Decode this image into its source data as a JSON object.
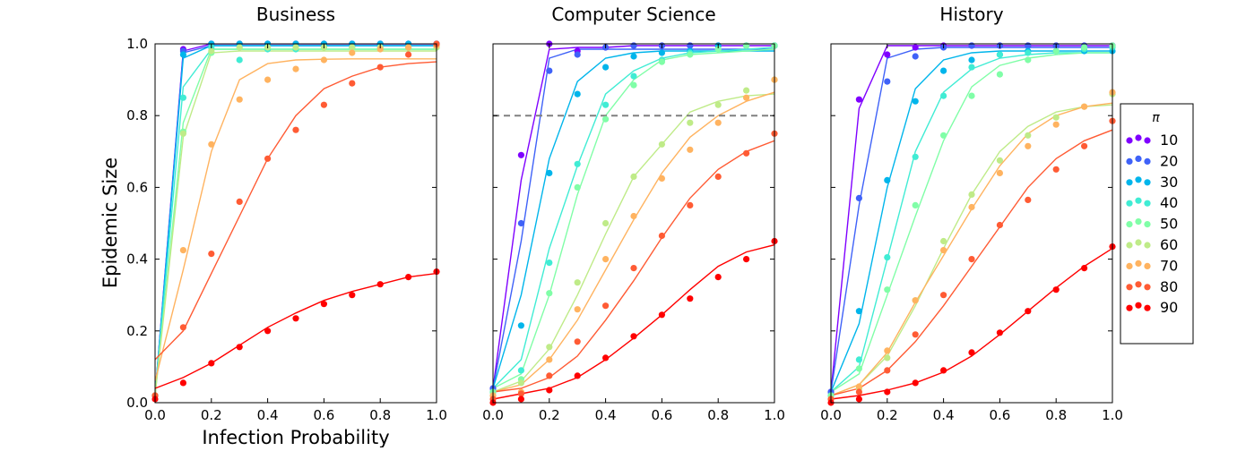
{
  "figure": {
    "ylabel": "Epidemic Size",
    "xlabel": "Infection Probability"
  },
  "legend": {
    "title": "π",
    "placement": "right",
    "entries": [
      "10",
      "20",
      "30",
      "40",
      "50",
      "60",
      "70",
      "80",
      "90"
    ]
  },
  "reference_line": {
    "panel": 2,
    "y": 0.8,
    "color": "#808080",
    "style": "dashed"
  },
  "chart_data": [
    {
      "type": "scatter",
      "title": "Business",
      "xlabel": "Infection Probability",
      "ylabel": "Epidemic Size",
      "xlim": [
        0,
        1
      ],
      "ylim": [
        0,
        1
      ],
      "xticks": [
        "0.0",
        "0.2",
        "0.4",
        "0.6",
        "0.8",
        "1.0"
      ],
      "yticks": [
        "0.0",
        "0.2",
        "0.4",
        "0.6",
        "0.8",
        "1.0"
      ],
      "x": [
        0.0,
        0.1,
        0.2,
        0.3,
        0.4,
        0.5,
        0.6,
        0.7,
        0.8,
        0.9,
        1.0
      ],
      "series": [
        {
          "name": "10",
          "color": "#7f00ff",
          "points": [
            0.02,
            0.985,
            1,
            1,
            1,
            1,
            1,
            1,
            1,
            1,
            1
          ],
          "line": [
            0.02,
            0.98,
            1,
            1,
            1,
            1,
            1,
            1,
            1,
            1,
            1
          ]
        },
        {
          "name": "20",
          "color": "#3f62f8",
          "points": [
            0.02,
            0.98,
            1,
            1,
            1,
            1,
            1,
            1,
            1,
            1,
            1
          ],
          "line": [
            0.02,
            0.975,
            0.995,
            0.995,
            0.995,
            0.995,
            0.995,
            0.995,
            0.995,
            0.995,
            0.995
          ]
        },
        {
          "name": "30",
          "color": "#00b5eb",
          "points": [
            0.02,
            0.97,
            1,
            1,
            1,
            1,
            1,
            1,
            1,
            1,
            1
          ],
          "line": [
            0.02,
            0.96,
            0.995,
            0.995,
            0.995,
            0.995,
            0.995,
            0.995,
            0.995,
            0.995,
            0.995
          ]
        },
        {
          "name": "40",
          "color": "#40ecd4",
          "points": [
            0.02,
            0.85,
            0.99,
            0.955,
            0.985,
            0.985,
            0.99,
            0.99,
            0.99,
            0.99,
            0.995
          ],
          "line": [
            0.02,
            0.88,
            0.985,
            0.985,
            0.985,
            0.985,
            0.985,
            0.985,
            0.985,
            0.985,
            0.985
          ]
        },
        {
          "name": "50",
          "color": "#80fea7",
          "points": [
            0.02,
            0.755,
            0.975,
            0.99,
            0.99,
            0.99,
            0.99,
            0.99,
            0.99,
            0.99,
            0.99
          ],
          "line": [
            0.02,
            0.78,
            0.985,
            0.985,
            0.985,
            0.985,
            0.985,
            0.985,
            0.985,
            0.985,
            0.985
          ]
        },
        {
          "name": "60",
          "color": "#bfeb88",
          "points": [
            0.02,
            0.75,
            0.98,
            0.99,
            0.99,
            0.99,
            0.99,
            0.99,
            0.99,
            0.99,
            0.99
          ],
          "line": [
            0.02,
            0.74,
            0.975,
            0.98,
            0.98,
            0.98,
            0.98,
            0.98,
            0.98,
            0.98,
            0.98
          ]
        },
        {
          "name": "70",
          "color": "#ffb360",
          "points": [
            0.02,
            0.425,
            0.72,
            0.845,
            0.9,
            0.93,
            0.955,
            0.975,
            0.985,
            0.99,
            0.995
          ],
          "line": [
            0.06,
            0.37,
            0.7,
            0.9,
            0.945,
            0.955,
            0.957,
            0.958,
            0.958,
            0.958,
            0.958
          ]
        },
        {
          "name": "80",
          "color": "#ff5b34",
          "points": [
            0.02,
            0.21,
            0.415,
            0.56,
            0.68,
            0.76,
            0.83,
            0.89,
            0.935,
            0.97,
            1.0
          ],
          "line": [
            0.12,
            0.2,
            0.36,
            0.52,
            0.68,
            0.8,
            0.875,
            0.91,
            0.935,
            0.945,
            0.95
          ]
        },
        {
          "name": "90",
          "color": "#ff0000",
          "points": [
            0.01,
            0.055,
            0.11,
            0.155,
            0.2,
            0.235,
            0.275,
            0.3,
            0.33,
            0.35,
            0.365
          ],
          "line": [
            0.04,
            0.07,
            0.11,
            0.16,
            0.21,
            0.25,
            0.285,
            0.31,
            0.33,
            0.35,
            0.36
          ]
        }
      ]
    },
    {
      "type": "scatter",
      "title": "Computer Science",
      "xlim": [
        0,
        1
      ],
      "ylim": [
        0,
        1
      ],
      "xticks": [
        "0.0",
        "0.2",
        "0.4",
        "0.6",
        "0.8",
        "1.0"
      ],
      "x": [
        0.0,
        0.1,
        0.2,
        0.3,
        0.4,
        0.5,
        0.6,
        0.7,
        0.8,
        0.9,
        1.0
      ],
      "series": [
        {
          "name": "10",
          "color": "#7f00ff",
          "points": [
            0.04,
            0.69,
            1.0,
            0.98,
            0.99,
            0.995,
            0.995,
            0.995,
            0.995,
            0.995,
            0.995
          ],
          "line": [
            0.04,
            0.62,
            0.985,
            0.99,
            0.99,
            0.995,
            0.995,
            0.995,
            0.995,
            0.995,
            0.995
          ]
        },
        {
          "name": "20",
          "color": "#3f62f8",
          "points": [
            0.04,
            0.5,
            0.925,
            0.97,
            0.99,
            0.995,
            0.995,
            0.995,
            0.995,
            0.995,
            0.995
          ],
          "line": [
            0.04,
            0.45,
            0.96,
            0.985,
            0.985,
            0.985,
            0.985,
            0.985,
            0.985,
            0.985,
            0.985
          ]
        },
        {
          "name": "30",
          "color": "#00b5eb",
          "points": [
            0.03,
            0.215,
            0.64,
            0.86,
            0.935,
            0.965,
            0.975,
            0.98,
            0.995,
            0.995,
            0.995
          ],
          "line": [
            0.04,
            0.3,
            0.68,
            0.895,
            0.96,
            0.975,
            0.98,
            0.98,
            0.98,
            0.98,
            0.98
          ]
        },
        {
          "name": "40",
          "color": "#40ecd4",
          "points": [
            0.03,
            0.09,
            0.39,
            0.665,
            0.83,
            0.91,
            0.955,
            0.975,
            0.985,
            0.995,
            0.995
          ],
          "line": [
            0.04,
            0.12,
            0.43,
            0.66,
            0.86,
            0.925,
            0.96,
            0.975,
            0.98,
            0.985,
            0.99
          ]
        },
        {
          "name": "50",
          "color": "#80fea7",
          "points": [
            0.03,
            0.065,
            0.305,
            0.6,
            0.79,
            0.885,
            0.95,
            0.97,
            0.985,
            0.995,
            0.995
          ],
          "line": [
            0.04,
            0.08,
            0.3,
            0.58,
            0.8,
            0.9,
            0.955,
            0.97,
            0.975,
            0.98,
            0.985
          ]
        },
        {
          "name": "60",
          "color": "#bfeb88",
          "points": [
            0.02,
            0.055,
            0.155,
            0.335,
            0.5,
            0.63,
            0.72,
            0.78,
            0.83,
            0.87,
            0.9
          ],
          "line": [
            0.03,
            0.06,
            0.15,
            0.3,
            0.47,
            0.63,
            0.72,
            0.81,
            0.84,
            0.855,
            0.86
          ]
        },
        {
          "name": "70",
          "color": "#ffb360",
          "points": [
            0.02,
            0.03,
            0.12,
            0.26,
            0.4,
            0.52,
            0.625,
            0.705,
            0.78,
            0.85,
            0.9
          ],
          "line": [
            0.03,
            0.05,
            0.12,
            0.23,
            0.37,
            0.51,
            0.64,
            0.74,
            0.8,
            0.84,
            0.865
          ]
        },
        {
          "name": "80",
          "color": "#ff5b34",
          "points": [
            0.01,
            0.025,
            0.075,
            0.17,
            0.27,
            0.375,
            0.465,
            0.55,
            0.63,
            0.695,
            0.75
          ],
          "line": [
            0.03,
            0.04,
            0.07,
            0.13,
            0.23,
            0.34,
            0.46,
            0.57,
            0.65,
            0.7,
            0.73
          ]
        },
        {
          "name": "90",
          "color": "#ff0000",
          "points": [
            0.0,
            0.01,
            0.035,
            0.075,
            0.125,
            0.185,
            0.245,
            0.29,
            0.35,
            0.4,
            0.45
          ],
          "line": [
            0.01,
            0.025,
            0.04,
            0.07,
            0.12,
            0.18,
            0.245,
            0.315,
            0.38,
            0.42,
            0.44
          ]
        }
      ]
    },
    {
      "type": "scatter",
      "title": "History",
      "xlim": [
        0,
        1
      ],
      "ylim": [
        0,
        1
      ],
      "xticks": [
        "0.0",
        "0.2",
        "0.4",
        "0.6",
        "0.8",
        "1.0"
      ],
      "x": [
        0.0,
        0.1,
        0.2,
        0.3,
        0.4,
        0.5,
        0.6,
        0.7,
        0.8,
        0.9,
        1.0
      ],
      "series": [
        {
          "name": "10",
          "color": "#7f00ff",
          "points": [
            0.03,
            0.845,
            0.97,
            0.99,
            0.995,
            0.995,
            0.995,
            0.995,
            0.995,
            0.995,
            0.995
          ],
          "line": [
            0.03,
            0.82,
            0.995,
            0.995,
            0.995,
            0.995,
            0.995,
            0.995,
            0.995,
            0.995,
            0.995
          ]
        },
        {
          "name": "20",
          "color": "#3f62f8",
          "points": [
            0.03,
            0.57,
            0.895,
            0.965,
            0.99,
            0.995,
            0.995,
            0.995,
            0.995,
            0.995,
            0.995
          ],
          "line": [
            0.03,
            0.55,
            0.96,
            0.985,
            0.99,
            0.99,
            0.99,
            0.99,
            0.99,
            0.99,
            0.99
          ]
        },
        {
          "name": "30",
          "color": "#00b5eb",
          "points": [
            0.02,
            0.255,
            0.62,
            0.84,
            0.925,
            0.955,
            0.97,
            0.98,
            0.98,
            0.98,
            0.98
          ],
          "line": [
            0.03,
            0.22,
            0.6,
            0.875,
            0.955,
            0.975,
            0.98,
            0.98,
            0.98,
            0.98,
            0.98
          ]
        },
        {
          "name": "40",
          "color": "#40ecd4",
          "points": [
            0.02,
            0.12,
            0.405,
            0.685,
            0.855,
            0.935,
            0.97,
            0.975,
            0.98,
            0.985,
            0.99
          ],
          "line": [
            0.03,
            0.1,
            0.4,
            0.7,
            0.865,
            0.93,
            0.96,
            0.97,
            0.975,
            0.975,
            0.975
          ]
        },
        {
          "name": "50",
          "color": "#80fea7",
          "points": [
            0.02,
            0.095,
            0.315,
            0.55,
            0.745,
            0.855,
            0.915,
            0.955,
            0.98,
            0.99,
            0.995
          ],
          "line": [
            0.03,
            0.08,
            0.3,
            0.52,
            0.73,
            0.88,
            0.94,
            0.96,
            0.97,
            0.975,
            0.975
          ]
        },
        {
          "name": "60",
          "color": "#bfeb88",
          "points": [
            0.01,
            0.04,
            0.125,
            0.285,
            0.45,
            0.58,
            0.675,
            0.745,
            0.795,
            0.825,
            0.86
          ],
          "line": [
            0.02,
            0.05,
            0.13,
            0.27,
            0.43,
            0.58,
            0.7,
            0.77,
            0.81,
            0.825,
            0.83
          ]
        },
        {
          "name": "70",
          "color": "#ffb360",
          "points": [
            0.01,
            0.045,
            0.145,
            0.285,
            0.425,
            0.545,
            0.64,
            0.715,
            0.775,
            0.825,
            0.865
          ],
          "line": [
            0.02,
            0.05,
            0.14,
            0.28,
            0.41,
            0.54,
            0.66,
            0.75,
            0.8,
            0.825,
            0.835
          ]
        },
        {
          "name": "80",
          "color": "#ff5b34",
          "points": [
            0.01,
            0.03,
            0.09,
            0.19,
            0.3,
            0.4,
            0.495,
            0.565,
            0.65,
            0.715,
            0.785
          ],
          "line": [
            0.02,
            0.04,
            0.09,
            0.17,
            0.27,
            0.38,
            0.49,
            0.6,
            0.68,
            0.73,
            0.76
          ]
        },
        {
          "name": "90",
          "color": "#ff0000",
          "points": [
            0.0,
            0.01,
            0.03,
            0.055,
            0.09,
            0.14,
            0.195,
            0.255,
            0.315,
            0.375,
            0.435
          ],
          "line": [
            0.01,
            0.02,
            0.035,
            0.055,
            0.085,
            0.13,
            0.19,
            0.255,
            0.32,
            0.38,
            0.43
          ]
        }
      ]
    }
  ]
}
